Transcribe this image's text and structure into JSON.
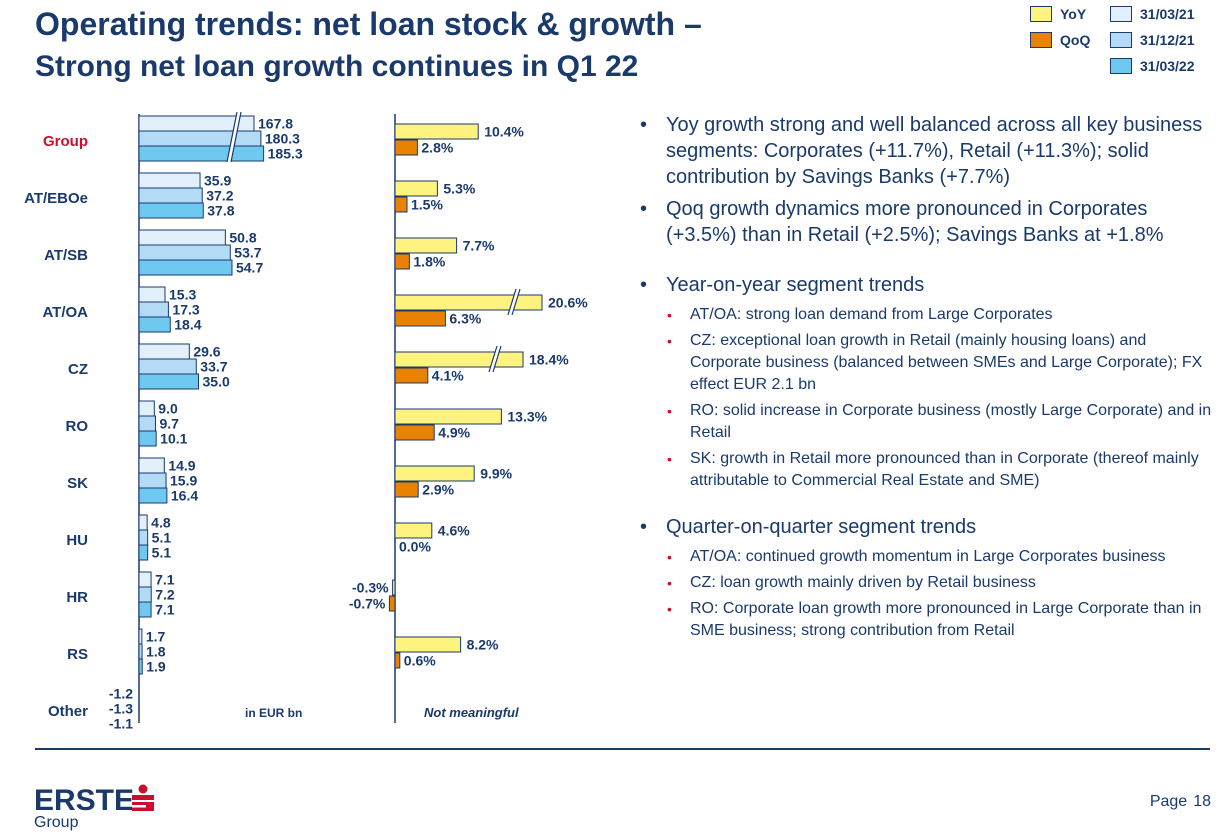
{
  "title": "Operating trends: net loan stock & growth –",
  "subtitle": "Strong net loan growth continues in Q1 22",
  "legend": {
    "growth": [
      {
        "label": "YoY",
        "color": "#fff380"
      },
      {
        "label": "QoQ",
        "color": "#e98200"
      }
    ],
    "stock": [
      {
        "label": "31/03/21",
        "color": "#e1f0fb"
      },
      {
        "label": "31/12/21",
        "color": "#b3dbf5"
      },
      {
        "label": "31/03/22",
        "color": "#6ec8f0"
      }
    ]
  },
  "chart_data": [
    {
      "type": "bar",
      "orientation": "horizontal",
      "unit_note": "in EUR bn",
      "categories": [
        "Group",
        "AT/EBOe",
        "AT/SB",
        "AT/OA",
        "CZ",
        "RO",
        "SK",
        "HU",
        "HR",
        "RS",
        "Other"
      ],
      "highlight_category": "Group",
      "series": [
        {
          "name": "31/03/21",
          "values": [
            167.8,
            35.9,
            50.8,
            15.3,
            29.6,
            9.0,
            14.9,
            4.8,
            7.1,
            1.7,
            -1.2
          ]
        },
        {
          "name": "31/12/21",
          "values": [
            180.3,
            37.2,
            53.7,
            17.3,
            33.7,
            9.7,
            15.9,
            5.1,
            7.2,
            1.8,
            -1.3
          ]
        },
        {
          "name": "31/03/22",
          "values": [
            185.3,
            37.8,
            54.7,
            18.4,
            35.0,
            10.1,
            16.4,
            5.1,
            7.1,
            1.9,
            -1.1
          ]
        }
      ],
      "labels": [
        [
          "167.8",
          "180.3",
          "185.3"
        ],
        [
          "35.9",
          "37.2",
          "37.8"
        ],
        [
          "50.8",
          "53.7",
          "54.7"
        ],
        [
          "15.3",
          "17.3",
          "18.4"
        ],
        [
          "29.6",
          "33.7",
          "35.0"
        ],
        [
          "9.0",
          "9.7",
          "10.1"
        ],
        [
          "14.9",
          "15.9",
          "16.4"
        ],
        [
          "4.8",
          "5.1",
          "5.1"
        ],
        [
          "7.1",
          "7.2",
          "7.1"
        ],
        [
          "1.7",
          "1.8",
          "1.9"
        ],
        [
          "-1.2",
          "-1.3",
          "-1.1"
        ]
      ],
      "axis_break": {
        "category": "Group"
      }
    },
    {
      "type": "bar",
      "orientation": "horizontal",
      "unit_note": "Not meaningful",
      "categories": [
        "Group",
        "AT/EBOe",
        "AT/SB",
        "AT/OA",
        "CZ",
        "RO",
        "SK",
        "HU",
        "HR",
        "RS",
        "Other"
      ],
      "series": [
        {
          "name": "YoY",
          "values": [
            10.4,
            5.3,
            7.7,
            20.6,
            18.4,
            13.3,
            9.9,
            4.6,
            -0.3,
            8.2,
            null
          ]
        },
        {
          "name": "QoQ",
          "values": [
            2.8,
            1.5,
            1.8,
            6.3,
            4.1,
            4.9,
            2.9,
            0.0,
            -0.7,
            0.6,
            null
          ]
        }
      ],
      "labels": [
        [
          "10.4%",
          "2.8%"
        ],
        [
          "5.3%",
          "1.5%"
        ],
        [
          "7.7%",
          "1.8%"
        ],
        [
          "20.6%",
          "6.3%"
        ],
        [
          "18.4%",
          "4.1%"
        ],
        [
          "13.3%",
          "4.9%"
        ],
        [
          "9.9%",
          "2.9%"
        ],
        [
          "4.6%",
          "0.0%"
        ],
        [
          "-0.3%",
          "-0.7%"
        ],
        [
          "8.2%",
          "0.6%"
        ],
        [
          "",
          ""
        ]
      ],
      "axis_breaks": [
        "AT/OA",
        "CZ"
      ]
    }
  ],
  "bullets": [
    {
      "text": "Yoy growth strong and well balanced across all key business segments: Corporates (+11.7%), Retail (+11.3%); solid contribution by Savings Banks (+7.7%)"
    },
    {
      "text": "Qoq growth dynamics more pronounced in Corporates (+3.5%) than in Retail (+2.5%); Savings Banks at +1.8%"
    },
    {
      "text": "Year-on-year segment trends",
      "sub": [
        "AT/OA: strong loan demand from Large Corporates",
        "CZ: exceptional loan growth in Retail (mainly housing loans) and Corporate business (balanced between SMEs and Large Corporate); FX effect EUR 2.1 bn",
        "RO: solid increase in Corporate business (mostly Large Corporate) and in Retail",
        "SK: growth in Retail more pronounced than in Corporate (thereof mainly attributable to Commercial Real Estate and SME)"
      ]
    },
    {
      "text": "Quarter-on-quarter segment trends",
      "sub": [
        "AT/OA: continued growth momentum in Large Corporates business",
        "CZ: loan growth mainly driven by Retail business",
        "RO: Corporate loan growth more pronounced in Large Corporate than in SME business; strong contribution from Retail"
      ]
    }
  ],
  "footer": {
    "logo_main": "ERSTE",
    "logo_sub": "Group",
    "page_label": "Page",
    "page_number": "18"
  },
  "colors": {
    "navy": "#1a3a6b",
    "highlight": "#c8102e"
  }
}
